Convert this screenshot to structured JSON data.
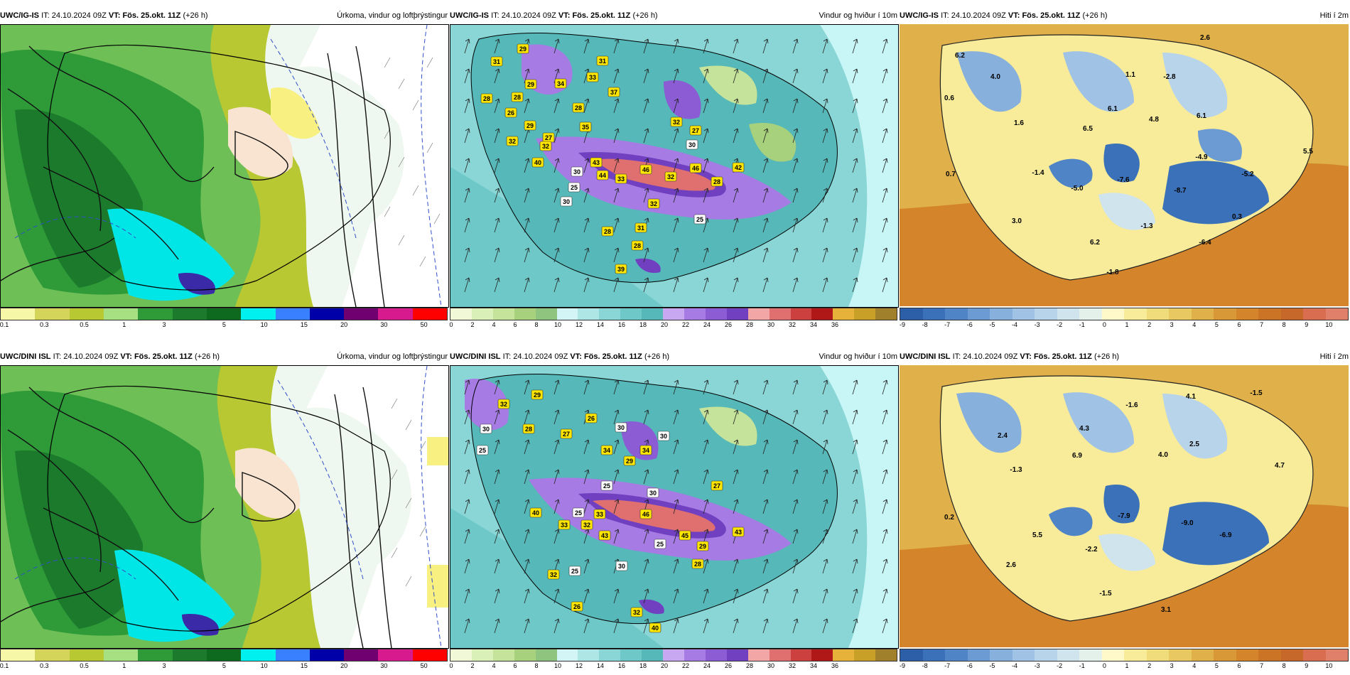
{
  "colors": {
    "precip": [
      "#f7f7a8",
      "#d4d45a",
      "#b8c832",
      "#a6e083",
      "#2e9b38",
      "#1c7a2c",
      "#0e6a1e",
      "#00f0f0",
      "#3880ff",
      "#0000a8",
      "#700070",
      "#d81a8f",
      "#ff0000"
    ],
    "wind": [
      "#f0f8d8",
      "#d9f0b8",
      "#c6e39b",
      "#a7d17c",
      "#8fc47e",
      "#d4f5f5",
      "#aee6e6",
      "#8ad6d6",
      "#6fc8c8",
      "#56b8b8",
      "#c8a8f0",
      "#a67be4",
      "#8b5cd4",
      "#7040c0",
      "#f2a6a6",
      "#e07070",
      "#cc4040",
      "#b01818",
      "#e6b23a",
      "#c8a028",
      "#a0802a"
    ],
    "temp": [
      "#2c5fa8",
      "#3a71b8",
      "#4f84c6",
      "#6c9bd4",
      "#87b0dd",
      "#a0c2e4",
      "#b8d4ea",
      "#d0e4ee",
      "#e4f0ea",
      "#fff8c8",
      "#f8ec9a",
      "#f0dc7a",
      "#e8c860",
      "#e0b04a",
      "#d89838",
      "#d4852c",
      "#cc7426",
      "#c6682a",
      "#d96d50",
      "#e0806a"
    ]
  },
  "colorbars": {
    "precip": [
      "0.1",
      "0.3",
      "0.5",
      "1",
      "3",
      "5",
      "10",
      "15",
      "20",
      "30",
      "50"
    ],
    "wind": [
      "0",
      "2",
      "4",
      "6",
      "8",
      "10",
      "12",
      "14",
      "16",
      "18",
      "20",
      "22",
      "24",
      "26",
      "28",
      "30",
      "32",
      "34",
      "36"
    ],
    "temp": [
      "-9",
      "-8",
      "-7",
      "-6",
      "-5",
      "-4",
      "-3",
      "-2",
      "-1",
      "0",
      "1",
      "2",
      "3",
      "4",
      "5",
      "6",
      "7",
      "8",
      "9",
      "10"
    ]
  },
  "rows": [
    {
      "precip": {
        "model": "UWC/IG-IS",
        "it_label": "IT:",
        "it": "24.10.2024 09Z",
        "vt_label": "VT:",
        "vt": "Fös. 25.okt. 11Z",
        "lead": "(+26 h)",
        "title": "Úrkoma, vindur og loftþrýstingur"
      },
      "wind": {
        "model": "UWC/IG-IS",
        "it_label": "IT:",
        "it": "24.10.2024 09Z",
        "vt_label": "VT:",
        "vt": "Fös. 25.okt. 11Z",
        "lead": "(+26 h)",
        "title": "Vindur og hviður í 10m",
        "labels": [
          "29",
          "31",
          "29",
          "28",
          "28",
          "26",
          "29",
          "27",
          "32",
          "31",
          "33",
          "34",
          "28",
          "37",
          "40",
          "32",
          "35",
          "43",
          "46",
          "27",
          "32",
          "44",
          "33",
          "25",
          "30",
          "32",
          "46",
          "42",
          "28",
          "31",
          "28",
          "28",
          "30",
          "32",
          "25",
          "39",
          "30"
        ]
      },
      "temp": {
        "model": "UWC/IG-IS",
        "it_label": "IT:",
        "it": "24.10.2024 09Z",
        "vt_label": "VT:",
        "vt": "Fös. 25.okt. 11Z",
        "lead": "(+26 h)",
        "title": "Hiti í 2m",
        "labels": [
          "2.6",
          "6.2",
          "4.0",
          "1.1",
          "-2.8",
          "0.6",
          "6.1",
          "6.1",
          "1.6",
          "4.8",
          "6.5",
          "5.5",
          "-4.9",
          "0.7",
          "-1.4",
          "-7.6",
          "-5.2",
          "-5.0",
          "-8.7",
          "3.0",
          "-1.3",
          "0.3",
          "6.2",
          "-6.4",
          "-1.8"
        ]
      }
    },
    {
      "precip": {
        "model": "UWC/DINI ISL",
        "it_label": "IT:",
        "it": "24.10.2024 09Z",
        "vt_label": "VT:",
        "vt": "Fös. 25.okt. 11Z",
        "lead": "(+26 h)",
        "title": "Úrkoma, vindur og loftþrýstingur"
      },
      "wind": {
        "model": "UWC/DINI ISL",
        "it_label": "IT:",
        "it": "24.10.2024 09Z",
        "vt_label": "VT:",
        "vt": "Fös. 25.okt. 11Z",
        "lead": "(+26 h)",
        "title": "Vindur og hviður í 10m",
        "labels": [
          "32",
          "29",
          "30",
          "28",
          "25",
          "27",
          "26",
          "34",
          "30",
          "29",
          "30",
          "25",
          "34",
          "30",
          "27",
          "40",
          "25",
          "33",
          "32",
          "46",
          "43",
          "45",
          "43",
          "29",
          "28",
          "30",
          "25",
          "25",
          "32",
          "26",
          "32",
          "40",
          "33"
        ]
      },
      "temp": {
        "model": "UWC/DINI ISL",
        "it_label": "IT:",
        "it": "24.10.2024 09Z",
        "vt_label": "VT:",
        "vt": "Fös. 25.okt. 11Z",
        "lead": "(+26 h)",
        "title": "Hiti í 2m",
        "labels": [
          "4.1",
          "-1.5",
          "-1.6",
          "2.4",
          "4.3",
          "2.5",
          "6.9",
          "4.0",
          "4.7",
          "-1.3",
          "0.2",
          "-7.9",
          "-9.0",
          "5.5",
          "-6.9",
          "-2.2",
          "2.6",
          "-1.5",
          "3.1"
        ]
      }
    }
  ]
}
